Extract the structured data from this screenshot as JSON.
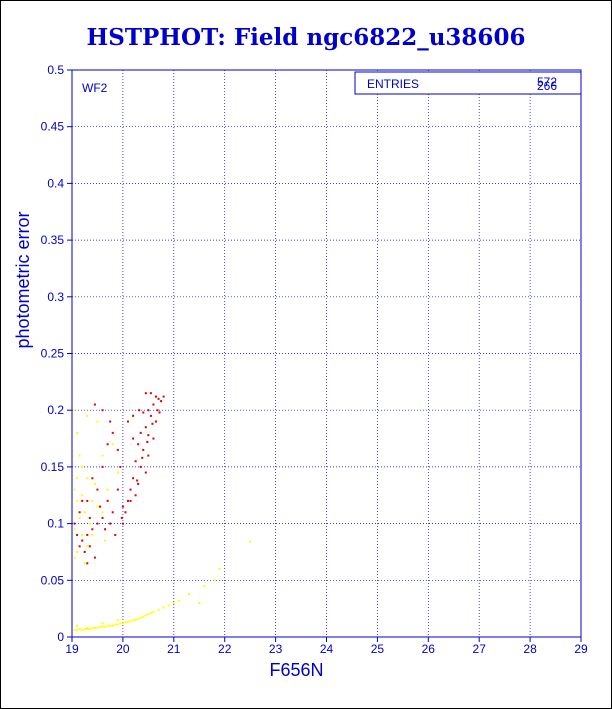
{
  "title": "HSTPHOT: Field ngc6822_u38606",
  "chart_data": {
    "type": "scatter",
    "xlabel": "F656N",
    "ylabel": "photometric error",
    "xlim": [
      19,
      29
    ],
    "ylim": [
      0,
      0.5
    ],
    "x_ticks": [
      "19",
      "20",
      "21",
      "22",
      "23",
      "24",
      "25",
      "26",
      "27",
      "28",
      "29"
    ],
    "y_ticks": [
      "0",
      "0.05",
      "0.1",
      "0.15",
      "0.2",
      "0.25",
      "0.3",
      "0.35",
      "0.4",
      "0.45",
      "0.5"
    ],
    "grid": true,
    "panel_label": "WF2",
    "stats_box": {
      "label": "ENTRIES",
      "value_1": "572",
      "value_2": "266"
    },
    "colors": {
      "axis": "#0000cc",
      "series_yellow": "#ffff00",
      "series_red": "#dd0000"
    },
    "series": [
      {
        "color": "yellow",
        "points": [
          [
            19.05,
            0.006
          ],
          [
            19.1,
            0.006
          ],
          [
            19.15,
            0.007
          ],
          [
            19.2,
            0.006
          ],
          [
            19.25,
            0.007
          ],
          [
            19.3,
            0.007
          ],
          [
            19.35,
            0.007
          ],
          [
            19.4,
            0.008
          ],
          [
            19.45,
            0.008
          ],
          [
            19.5,
            0.008
          ],
          [
            19.55,
            0.009
          ],
          [
            19.6,
            0.009
          ],
          [
            19.65,
            0.009
          ],
          [
            19.7,
            0.01
          ],
          [
            19.75,
            0.01
          ],
          [
            19.8,
            0.01
          ],
          [
            19.85,
            0.011
          ],
          [
            19.9,
            0.011
          ],
          [
            19.95,
            0.012
          ],
          [
            20.0,
            0.012
          ],
          [
            20.05,
            0.013
          ],
          [
            20.1,
            0.013
          ],
          [
            20.15,
            0.014
          ],
          [
            20.2,
            0.015
          ],
          [
            20.25,
            0.015
          ],
          [
            20.3,
            0.016
          ],
          [
            20.35,
            0.017
          ],
          [
            20.4,
            0.018
          ],
          [
            20.45,
            0.019
          ],
          [
            20.5,
            0.02
          ],
          [
            20.55,
            0.021
          ],
          [
            20.6,
            0.022
          ],
          [
            20.7,
            0.024
          ],
          [
            20.8,
            0.026
          ],
          [
            20.9,
            0.028
          ],
          [
            21.0,
            0.03
          ],
          [
            21.1,
            0.032
          ],
          [
            21.3,
            0.038
          ],
          [
            21.5,
            0.03
          ],
          [
            21.6,
            0.045
          ],
          [
            21.8,
            0.05
          ],
          [
            21.9,
            0.06
          ],
          [
            22.5,
            0.084
          ],
          [
            19.1,
            0.01
          ],
          [
            19.3,
            0.008
          ],
          [
            19.6,
            0.012
          ],
          [
            19.9,
            0.015
          ],
          [
            19.05,
            0.2
          ],
          [
            19.1,
            0.18
          ],
          [
            19.15,
            0.16
          ],
          [
            19.2,
            0.15
          ],
          [
            19.1,
            0.14
          ],
          [
            19.05,
            0.13
          ],
          [
            19.2,
            0.125
          ],
          [
            19.3,
            0.14
          ],
          [
            19.1,
            0.12
          ],
          [
            19.25,
            0.11
          ],
          [
            19.4,
            0.12
          ],
          [
            19.5,
            0.115
          ],
          [
            19.15,
            0.105
          ],
          [
            19.35,
            0.1
          ],
          [
            19.05,
            0.095
          ],
          [
            19.2,
            0.09
          ],
          [
            19.4,
            0.09
          ],
          [
            19.6,
            0.11
          ],
          [
            19.7,
            0.13
          ],
          [
            19.3,
            0.08
          ],
          [
            19.1,
            0.075
          ],
          [
            19.5,
            0.19
          ],
          [
            19.3,
            0.195
          ],
          [
            19.6,
            0.16
          ],
          [
            19.8,
            0.17
          ],
          [
            19.05,
            0.07
          ],
          [
            19.25,
            0.065
          ],
          [
            19.45,
            0.135
          ],
          [
            19.9,
            0.145
          ],
          [
            19.65,
            0.085
          ]
        ]
      },
      {
        "color": "red",
        "points": [
          [
            20.45,
            0.215
          ],
          [
            20.55,
            0.215
          ],
          [
            20.65,
            0.212
          ],
          [
            20.7,
            0.21
          ],
          [
            20.75,
            0.208
          ],
          [
            20.8,
            0.212
          ],
          [
            20.6,
            0.205
          ],
          [
            20.5,
            0.2
          ],
          [
            20.4,
            0.198
          ],
          [
            20.55,
            0.195
          ],
          [
            20.65,
            0.19
          ],
          [
            20.45,
            0.185
          ],
          [
            20.35,
            0.18
          ],
          [
            20.5,
            0.178
          ],
          [
            20.6,
            0.175
          ],
          [
            20.3,
            0.17
          ],
          [
            20.4,
            0.165
          ],
          [
            20.5,
            0.16
          ],
          [
            20.25,
            0.155
          ],
          [
            20.35,
            0.15
          ],
          [
            20.45,
            0.145
          ],
          [
            20.2,
            0.14
          ],
          [
            20.3,
            0.135
          ],
          [
            20.15,
            0.13
          ],
          [
            20.25,
            0.125
          ],
          [
            20.1,
            0.12
          ],
          [
            20.0,
            0.115
          ],
          [
            20.05,
            0.11
          ],
          [
            19.98,
            0.105
          ],
          [
            20.0,
            0.1
          ],
          [
            20.15,
            0.12
          ],
          [
            20.28,
            0.138
          ],
          [
            20.38,
            0.158
          ],
          [
            20.48,
            0.172
          ],
          [
            20.58,
            0.188
          ],
          [
            20.68,
            0.2
          ],
          [
            20.72,
            0.198
          ],
          [
            20.32,
            0.2
          ],
          [
            20.2,
            0.195
          ],
          [
            20.1,
            0.19
          ],
          [
            20.2,
            0.175
          ],
          [
            19.9,
            0.13
          ],
          [
            19.8,
            0.11
          ],
          [
            19.7,
            0.12
          ],
          [
            19.6,
            0.105
          ],
          [
            19.5,
            0.1
          ],
          [
            19.4,
            0.095
          ],
          [
            19.3,
            0.09
          ],
          [
            19.2,
            0.085
          ],
          [
            19.35,
            0.08
          ],
          [
            19.25,
            0.075
          ],
          [
            19.45,
            0.07
          ],
          [
            19.3,
            0.065
          ],
          [
            19.15,
            0.08
          ],
          [
            19.1,
            0.09
          ],
          [
            19.05,
            0.1
          ],
          [
            19.15,
            0.11
          ],
          [
            19.2,
            0.12
          ],
          [
            19.55,
            0.115
          ],
          [
            19.65,
            0.095
          ],
          [
            19.75,
            0.1
          ],
          [
            19.85,
            0.09
          ],
          [
            19.95,
            0.15
          ],
          [
            19.9,
            0.165
          ],
          [
            19.8,
            0.18
          ],
          [
            19.7,
            0.17
          ],
          [
            19.6,
            0.15
          ],
          [
            19.4,
            0.14
          ],
          [
            19.3,
            0.12
          ],
          [
            19.45,
            0.205
          ],
          [
            19.6,
            0.2
          ],
          [
            19.75,
            0.19
          ],
          [
            19.5,
            0.13
          ],
          [
            19.35,
            0.105
          ]
        ]
      }
    ]
  }
}
